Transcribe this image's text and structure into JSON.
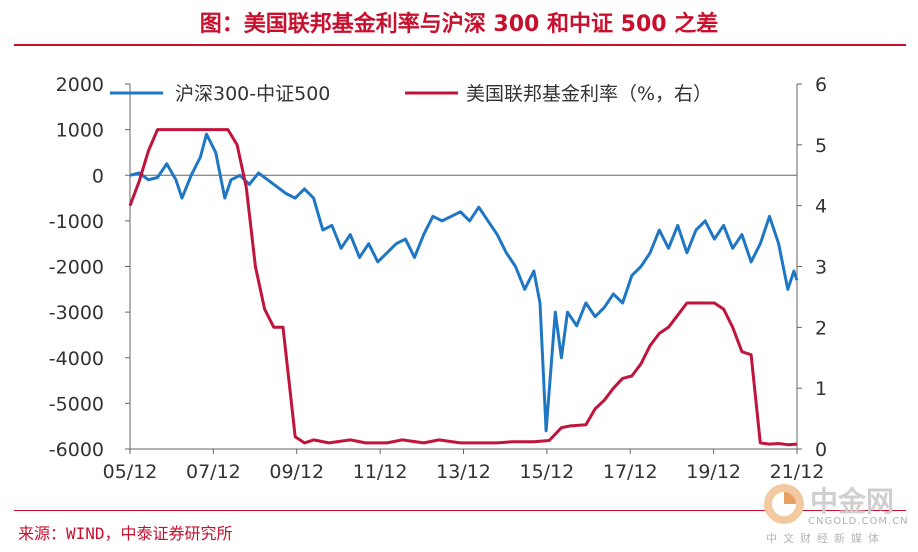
{
  "page": {
    "title": "图：美国联邦基金利率与沪深 300 和中证 500 之差",
    "source": "来源：WIND，中泰证券研究所"
  },
  "watermark": {
    "name": "中金网",
    "site": "CNGOLD.COM.CN",
    "subtitle": "中文财经新媒体",
    "icon": "cngold-logo-icon"
  },
  "chart_data": {
    "type": "line",
    "x_tick_labels": [
      "05/12",
      "07/12",
      "09/12",
      "11/12",
      "13/12",
      "15/12",
      "17/12",
      "19/12",
      "21/12"
    ],
    "y_left": {
      "ylim": [
        -6000,
        2000
      ],
      "ticks": [
        "2000",
        "1000",
        "0",
        "-1000",
        "-2000",
        "-3000",
        "-4000",
        "-5000",
        "-6000"
      ]
    },
    "y_right": {
      "ylim": [
        0,
        6
      ],
      "ticks": [
        "6",
        "5",
        "4",
        "3",
        "2",
        "1",
        "0"
      ]
    },
    "colors": {
      "spread": "#1f77c4",
      "rate": "#c0143c",
      "axis": "#666666"
    },
    "series": [
      {
        "name": "沪深300-中证500",
        "axis": "left",
        "points": [
          [
            "2005-01",
            0
          ],
          [
            "2005-04",
            50
          ],
          [
            "2005-07",
            -100
          ],
          [
            "2005-10",
            -50
          ],
          [
            "2006-01",
            250
          ],
          [
            "2006-04",
            -100
          ],
          [
            "2006-06",
            -500
          ],
          [
            "2006-09",
            0
          ],
          [
            "2006-12",
            400
          ],
          [
            "2007-02",
            900
          ],
          [
            "2007-05",
            500
          ],
          [
            "2007-08",
            -500
          ],
          [
            "2007-10",
            -100
          ],
          [
            "2008-01",
            0
          ],
          [
            "2008-04",
            -200
          ],
          [
            "2008-07",
            50
          ],
          [
            "2008-10",
            -100
          ],
          [
            "2009-01",
            -250
          ],
          [
            "2009-04",
            -400
          ],
          [
            "2009-07",
            -500
          ],
          [
            "2009-10",
            -300
          ],
          [
            "2010-01",
            -500
          ],
          [
            "2010-04",
            -1200
          ],
          [
            "2010-07",
            -1100
          ],
          [
            "2010-10",
            -1600
          ],
          [
            "2011-01",
            -1300
          ],
          [
            "2011-04",
            -1800
          ],
          [
            "2011-07",
            -1500
          ],
          [
            "2011-10",
            -1900
          ],
          [
            "2012-01",
            -1700
          ],
          [
            "2012-04",
            -1500
          ],
          [
            "2012-07",
            -1400
          ],
          [
            "2012-10",
            -1800
          ],
          [
            "2013-01",
            -1300
          ],
          [
            "2013-04",
            -900
          ],
          [
            "2013-07",
            -1000
          ],
          [
            "2013-10",
            -900
          ],
          [
            "2014-01",
            -800
          ],
          [
            "2014-04",
            -1000
          ],
          [
            "2014-07",
            -700
          ],
          [
            "2014-10",
            -1000
          ],
          [
            "2015-01",
            -1300
          ],
          [
            "2015-04",
            -1700
          ],
          [
            "2015-07",
            -2000
          ],
          [
            "2015-10",
            -2500
          ],
          [
            "2016-01",
            -2100
          ],
          [
            "2016-03",
            -2800
          ],
          [
            "2016-05",
            -5600
          ],
          [
            "2016-08",
            -3000
          ],
          [
            "2016-10",
            -4000
          ],
          [
            "2016-12",
            -3000
          ],
          [
            "2017-03",
            -3300
          ],
          [
            "2017-06",
            -2800
          ],
          [
            "2017-09",
            -3100
          ],
          [
            "2017-12",
            -2900
          ],
          [
            "2018-03",
            -2600
          ],
          [
            "2018-06",
            -2800
          ],
          [
            "2018-09",
            -2200
          ],
          [
            "2018-12",
            -2000
          ],
          [
            "2019-03",
            -1700
          ],
          [
            "2019-06",
            -1200
          ],
          [
            "2019-09",
            -1600
          ],
          [
            "2019-12",
            -1100
          ],
          [
            "2020-03",
            -1700
          ],
          [
            "2020-06",
            -1200
          ],
          [
            "2020-09",
            -1000
          ],
          [
            "2020-12",
            -1400
          ],
          [
            "2021-03",
            -1100
          ],
          [
            "2021-06",
            -1600
          ],
          [
            "2021-09",
            -1300
          ],
          [
            "2021-12",
            -1900
          ],
          [
            "2022-03",
            -1500
          ],
          [
            "2022-06",
            -900
          ],
          [
            "2022-09",
            -1500
          ],
          [
            "2022-12",
            -2500
          ],
          [
            "2023-02",
            -2100
          ],
          [
            "2023-03",
            -2300
          ]
        ]
      },
      {
        "name": "美国联邦基金利率（%，右）",
        "axis": "right",
        "points": [
          [
            "2005-01",
            4.0
          ],
          [
            "2005-04",
            4.4
          ],
          [
            "2005-07",
            4.9
          ],
          [
            "2005-10",
            5.25
          ],
          [
            "2006-06",
            5.25
          ],
          [
            "2007-09",
            5.25
          ],
          [
            "2007-12",
            5.0
          ],
          [
            "2008-03",
            4.3
          ],
          [
            "2008-06",
            3.0
          ],
          [
            "2008-09",
            2.3
          ],
          [
            "2008-12",
            2.0
          ],
          [
            "2009-03",
            2.0
          ],
          [
            "2009-07",
            0.2
          ],
          [
            "2009-10",
            0.1
          ],
          [
            "2010-01",
            0.15
          ],
          [
            "2010-06",
            0.1
          ],
          [
            "2011-01",
            0.15
          ],
          [
            "2011-06",
            0.1
          ],
          [
            "2012-01",
            0.1
          ],
          [
            "2012-06",
            0.15
          ],
          [
            "2013-01",
            0.1
          ],
          [
            "2013-06",
            0.15
          ],
          [
            "2014-01",
            0.1
          ],
          [
            "2014-06",
            0.1
          ],
          [
            "2015-01",
            0.1
          ],
          [
            "2015-06",
            0.12
          ],
          [
            "2016-01",
            0.12
          ],
          [
            "2016-06",
            0.14
          ],
          [
            "2016-10",
            0.35
          ],
          [
            "2017-01",
            0.38
          ],
          [
            "2017-06",
            0.4
          ],
          [
            "2017-09",
            0.66
          ],
          [
            "2017-12",
            0.8
          ],
          [
            "2018-03",
            1.0
          ],
          [
            "2018-06",
            1.16
          ],
          [
            "2018-09",
            1.2
          ],
          [
            "2018-12",
            1.4
          ],
          [
            "2019-03",
            1.7
          ],
          [
            "2019-06",
            1.9
          ],
          [
            "2019-09",
            2.0
          ],
          [
            "2019-12",
            2.2
          ],
          [
            "2020-03",
            2.4
          ],
          [
            "2020-06",
            2.4
          ],
          [
            "2020-09",
            2.4
          ],
          [
            "2020-12",
            2.4
          ],
          [
            "2021-03",
            2.3
          ],
          [
            "2021-06",
            2.0
          ],
          [
            "2021-09",
            1.6
          ],
          [
            "2021-12",
            1.55
          ],
          [
            "2022-03",
            0.1
          ],
          [
            "2022-06",
            0.08
          ],
          [
            "2022-09",
            0.09
          ],
          [
            "2022-12",
            0.07
          ],
          [
            "2023-03",
            0.08
          ]
        ]
      }
    ],
    "grid": false,
    "legend_position": "top"
  }
}
